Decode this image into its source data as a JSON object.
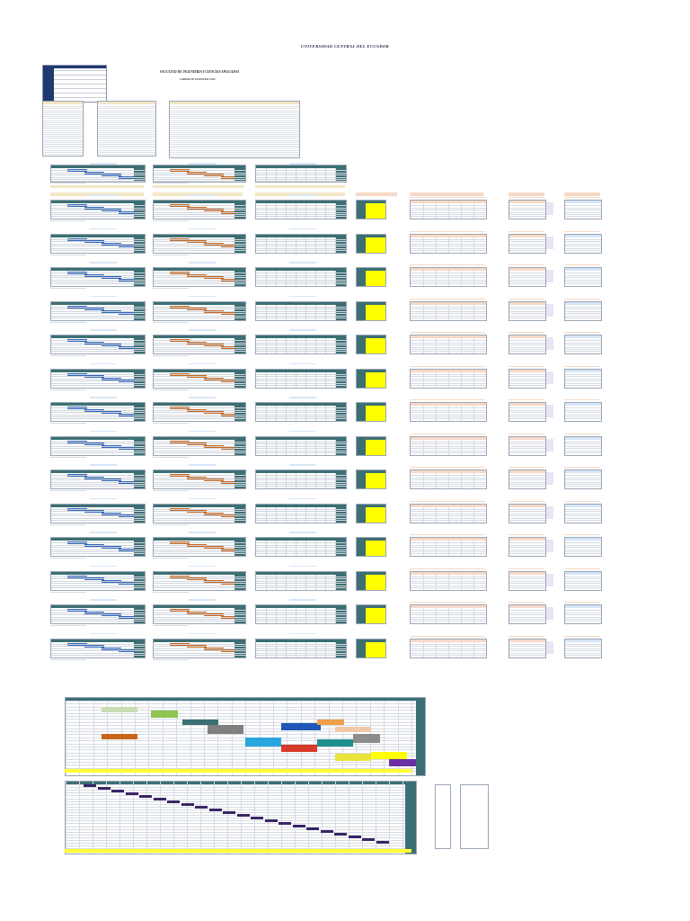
{
  "document": {
    "university": "UNIVERSIDAD CENTRAL DEL ECUADOR",
    "faculty": "FACULTAD DE INGENIERIA Y CIENCIAS APLICADAS",
    "career": "CARRERA DE INGENIERIA CIVIL"
  },
  "colors": {
    "navy": "#1e3a6e",
    "teal": "#3c6f73",
    "beige": "#f3e6c6",
    "yellow": "#ffff00",
    "orange": "#c8641a",
    "blue": "#2f63b8",
    "lightblue": "#d6e6f7",
    "peach": "#f6d9c6"
  },
  "layout_info": {
    "row_blocks": 14,
    "columns": [
      "left-panel",
      "middle-panel",
      "right-panel",
      "small-panel",
      "side-table-a",
      "side-table-b",
      "side-table-c"
    ]
  }
}
